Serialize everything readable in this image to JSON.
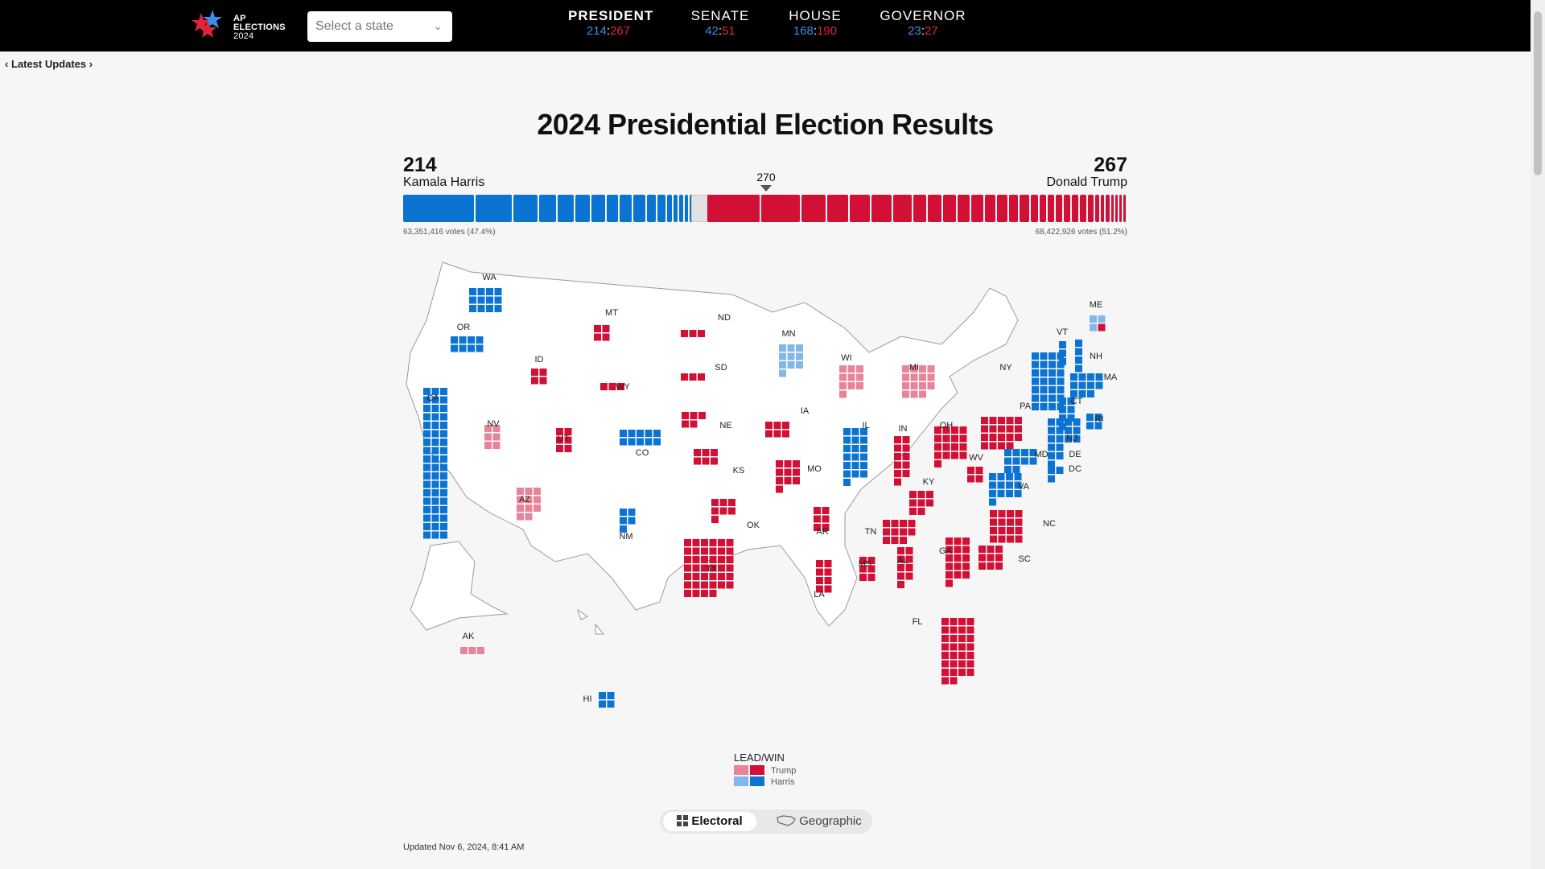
{
  "header": {
    "logo_lines": [
      "AP",
      "ELECTIONS",
      "2024"
    ],
    "state_select_placeholder": "Select a state",
    "races": [
      {
        "name": "PRESIDENT",
        "dem": "214",
        "rep": "267",
        "active": true
      },
      {
        "name": "SENATE",
        "dem": "42",
        "rep": "51"
      },
      {
        "name": "HOUSE",
        "dem": "168",
        "rep": "190"
      },
      {
        "name": "GOVERNOR",
        "dem": "23",
        "rep": "27"
      }
    ]
  },
  "latest_updates": "Latest Updates",
  "title": "2024 Presidential Election Results",
  "harris": {
    "ev": "214",
    "name": "Kamala Harris",
    "votes": "63,351,416 votes (47.4%)"
  },
  "trump": {
    "ev": "267",
    "name": "Donald Trump",
    "votes": "68,422,926 votes (51.2%)"
  },
  "threshold": "270",
  "colors": {
    "harris_win": "#0b73d1",
    "harris_lead": "#82b8e8",
    "trump_win": "#d20f35",
    "trump_lead": "#e8849a",
    "uncalled": "#e2e2e2"
  },
  "chart_data": {
    "type": "bar",
    "electoral_total": 538,
    "harris_ev": 214,
    "trump_ev": 267,
    "uncalled_ev": 57,
    "threshold": 270,
    "states": [
      {
        "abbr": "WA",
        "ev": 12,
        "status": "harris_win"
      },
      {
        "abbr": "OR",
        "ev": 8,
        "status": "harris_win"
      },
      {
        "abbr": "CA",
        "ev": 54,
        "status": "harris_win"
      },
      {
        "abbr": "NV",
        "ev": 6,
        "status": "trump_lead"
      },
      {
        "abbr": "AZ",
        "ev": 11,
        "status": "trump_lead"
      },
      {
        "abbr": "ID",
        "ev": 4,
        "status": "trump_win"
      },
      {
        "abbr": "MT",
        "ev": 4,
        "status": "trump_win"
      },
      {
        "abbr": "WY",
        "ev": 3,
        "status": "trump_win"
      },
      {
        "abbr": "UT",
        "ev": 6,
        "status": "trump_win"
      },
      {
        "abbr": "CO",
        "ev": 10,
        "status": "harris_win"
      },
      {
        "abbr": "NM",
        "ev": 5,
        "status": "harris_win"
      },
      {
        "abbr": "ND",
        "ev": 3,
        "status": "trump_win"
      },
      {
        "abbr": "SD",
        "ev": 3,
        "status": "trump_win"
      },
      {
        "abbr": "NE",
        "ev": 5,
        "status": "trump_win"
      },
      {
        "abbr": "KS",
        "ev": 6,
        "status": "trump_win"
      },
      {
        "abbr": "OK",
        "ev": 7,
        "status": "trump_win"
      },
      {
        "abbr": "TX",
        "ev": 40,
        "status": "trump_win"
      },
      {
        "abbr": "MN",
        "ev": 10,
        "status": "harris_lead"
      },
      {
        "abbr": "IA",
        "ev": 6,
        "status": "trump_win"
      },
      {
        "abbr": "MO",
        "ev": 10,
        "status": "trump_win"
      },
      {
        "abbr": "AR",
        "ev": 6,
        "status": "trump_win"
      },
      {
        "abbr": "LA",
        "ev": 8,
        "status": "trump_win"
      },
      {
        "abbr": "WI",
        "ev": 10,
        "status": "trump_lead"
      },
      {
        "abbr": "IL",
        "ev": 19,
        "status": "harris_win"
      },
      {
        "abbr": "MI",
        "ev": 15,
        "status": "trump_lead"
      },
      {
        "abbr": "IN",
        "ev": 11,
        "status": "trump_win"
      },
      {
        "abbr": "OH",
        "ev": 17,
        "status": "trump_win"
      },
      {
        "abbr": "KY",
        "ev": 8,
        "status": "trump_win"
      },
      {
        "abbr": "TN",
        "ev": 11,
        "status": "trump_win"
      },
      {
        "abbr": "MS",
        "ev": 6,
        "status": "trump_win"
      },
      {
        "abbr": "AL",
        "ev": 9,
        "status": "trump_win"
      },
      {
        "abbr": "GA",
        "ev": 16,
        "status": "trump_win"
      },
      {
        "abbr": "FL",
        "ev": 30,
        "status": "trump_win"
      },
      {
        "abbr": "SC",
        "ev": 9,
        "status": "trump_win"
      },
      {
        "abbr": "NC",
        "ev": 16,
        "status": "trump_win"
      },
      {
        "abbr": "VA",
        "ev": 13,
        "status": "harris_win"
      },
      {
        "abbr": "WV",
        "ev": 4,
        "status": "trump_win"
      },
      {
        "abbr": "PA",
        "ev": 19,
        "status": "trump_win"
      },
      {
        "abbr": "NY",
        "ev": 28,
        "status": "harris_win"
      },
      {
        "abbr": "NJ",
        "ev": 14,
        "status": "harris_win"
      },
      {
        "abbr": "MD",
        "ev": 10,
        "status": "harris_win"
      },
      {
        "abbr": "DE",
        "ev": 3,
        "status": "harris_win"
      },
      {
        "abbr": "DC",
        "ev": 3,
        "status": "harris_win"
      },
      {
        "abbr": "CT",
        "ev": 7,
        "status": "harris_win"
      },
      {
        "abbr": "RI",
        "ev": 4,
        "status": "harris_win"
      },
      {
        "abbr": "MA",
        "ev": 11,
        "status": "harris_win"
      },
      {
        "abbr": "VT",
        "ev": 3,
        "status": "harris_win"
      },
      {
        "abbr": "NH",
        "ev": 4,
        "status": "harris_win"
      },
      {
        "abbr": "ME",
        "ev": 4,
        "status": "split_harris_lead"
      },
      {
        "abbr": "AK",
        "ev": 3,
        "status": "trump_lead"
      },
      {
        "abbr": "HI",
        "ev": 4,
        "status": "harris_win"
      }
    ]
  },
  "legend": {
    "title": "LEAD/WIN",
    "trump": "Trump",
    "harris": "Harris"
  },
  "toggle": {
    "electoral": "Electoral",
    "geographic": "Geographic"
  },
  "updated": "Updated Nov 6, 2024, 8:41 AM"
}
